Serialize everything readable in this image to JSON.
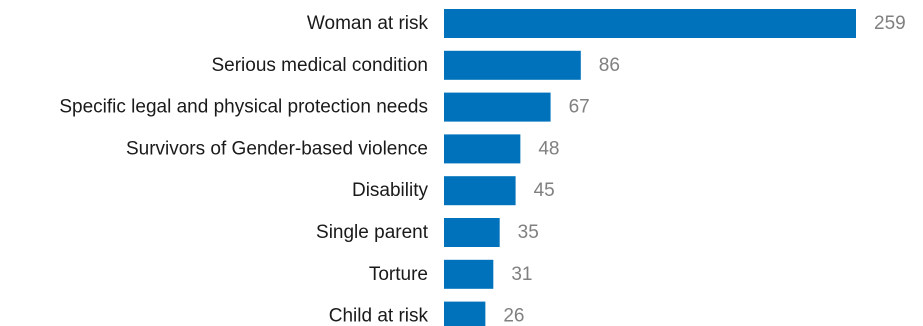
{
  "chart_data": {
    "type": "bar",
    "orientation": "horizontal",
    "categories": [
      "Woman at risk",
      "Serious medical condition",
      "Specific legal and physical protection needs",
      "Survivors of Gender-based violence",
      "Disability",
      "Single parent",
      "Torture",
      "Child at risk"
    ],
    "values": [
      259,
      86,
      67,
      48,
      45,
      35,
      31,
      26
    ],
    "title": "",
    "xlabel": "",
    "ylabel": "",
    "xlim": [
      0,
      259
    ],
    "grid": false,
    "legend": "none",
    "data_labels": true
  },
  "colors": {
    "bar": "#0072bc",
    "category_text": "#1a1a1a",
    "value_text": "#808080"
  }
}
